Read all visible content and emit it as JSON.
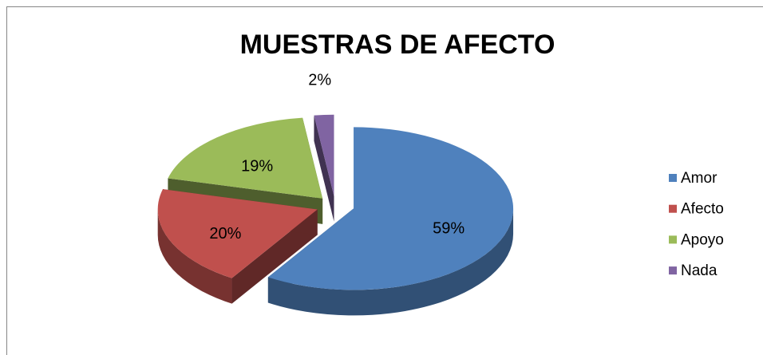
{
  "chart_data": {
    "type": "pie",
    "title": "MUESTRAS DE AFECTO",
    "categories": [
      "Amor",
      "Afecto",
      "Apoyo",
      "Nada"
    ],
    "values": [
      59,
      20,
      19,
      2
    ],
    "value_labels": [
      "59%",
      "20%",
      "19%",
      "2%"
    ],
    "colors": [
      "#4f81bd",
      "#c0504d",
      "#9bbb59",
      "#8064a2"
    ],
    "legend": "right"
  }
}
